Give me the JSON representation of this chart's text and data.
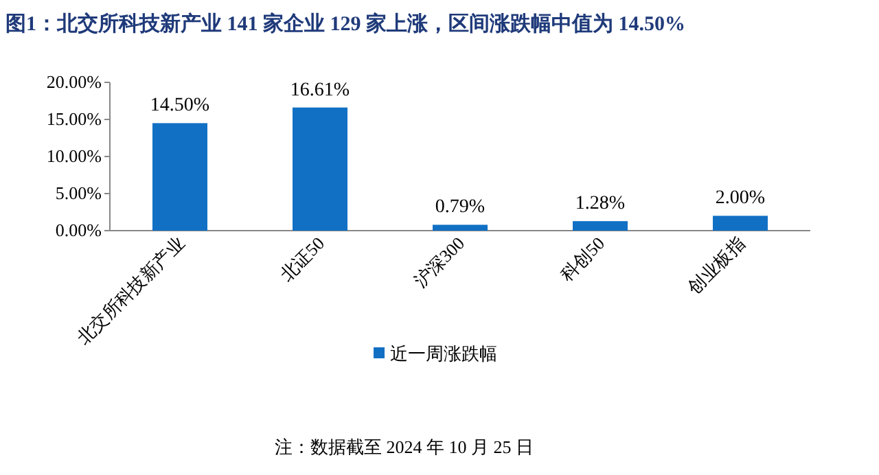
{
  "chart_data": {
    "type": "bar",
    "title": "图1：北交所科技新产业 141 家企业 129 家上涨，区间涨跌幅中值为 14.50%",
    "categories": [
      "北交所科技新产业",
      "北证50",
      "沪深300",
      "科创50",
      "创业板指"
    ],
    "series": [
      {
        "name": "近一周涨跌幅",
        "color": "#1170c4",
        "values": [
          14.5,
          16.61,
          0.79,
          1.28,
          2.0
        ],
        "value_labels": [
          "14.50%",
          "16.61%",
          "0.79%",
          "1.28%",
          "2.00%"
        ]
      }
    ],
    "ylim": [
      0,
      20
    ],
    "yticks": [
      {
        "value": 0,
        "label": "0.00%"
      },
      {
        "value": 5,
        "label": "5.00%"
      },
      {
        "value": 10,
        "label": "10.00%"
      },
      {
        "value": 15,
        "label": "15.00%"
      },
      {
        "value": 20,
        "label": "20.00%"
      }
    ],
    "grid": false,
    "legend": "bottom",
    "annotations": [
      "注：数据截至 2024 年 10 月 25 日"
    ]
  }
}
